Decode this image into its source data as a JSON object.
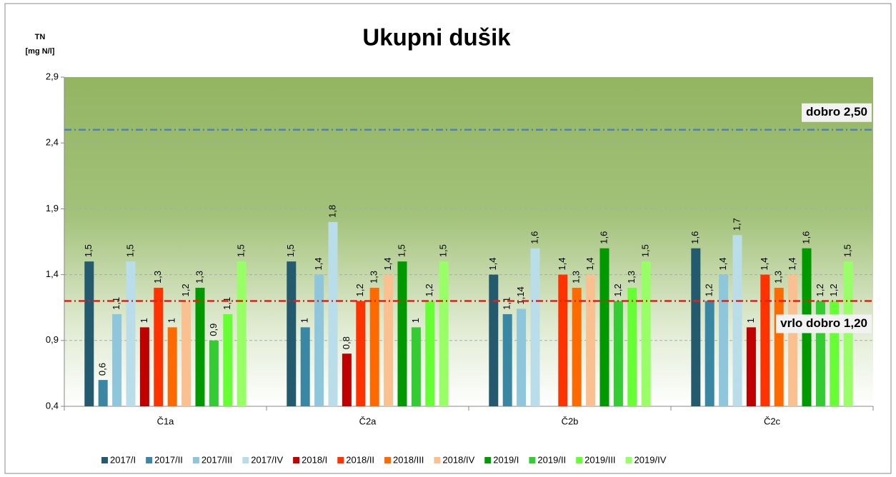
{
  "chart_data": {
    "type": "bar",
    "title": "Ukupni dušik",
    "y_label": [
      "TN",
      "[mg N/l]"
    ],
    "categories": [
      "Č1a",
      "Č2a",
      "Č2b",
      "Č2c"
    ],
    "ylim": [
      0.4,
      2.9
    ],
    "yticks": [
      {
        "value": 0.4,
        "label": "0,4"
      },
      {
        "value": 0.9,
        "label": "0,9"
      },
      {
        "value": 1.4,
        "label": "1,4"
      },
      {
        "value": 1.9,
        "label": "1,9"
      },
      {
        "value": 2.4,
        "label": "2,4"
      },
      {
        "value": 2.9,
        "label": "2,9"
      }
    ],
    "grid": true,
    "legend": "bottom",
    "reference_lines": [
      {
        "value": 2.5,
        "label": "dobro 2,50",
        "color": "#4f81bd"
      },
      {
        "value": 1.2,
        "label": "vrlo dobro 1,20",
        "color": "#e0201a"
      }
    ],
    "series": [
      {
        "name": "2017/I",
        "color": "#245a6e",
        "values": [
          1.5,
          1.5,
          1.4,
          1.6
        ],
        "value_labels": [
          "1,5",
          "1,5",
          "1,4",
          "1,6"
        ]
      },
      {
        "name": "2017/II",
        "color": "#3a87a3",
        "values": [
          0.6,
          1,
          1.1,
          1.2
        ],
        "value_labels": [
          "0,6",
          "1",
          "1,1",
          "1,2"
        ]
      },
      {
        "name": "2017/III",
        "color": "#8ec6dc",
        "values": [
          1.1,
          1.4,
          1.14,
          1.4
        ],
        "value_labels": [
          "1,1",
          "1,4",
          "1,14",
          "1,4"
        ]
      },
      {
        "name": "2017/IV",
        "color": "#b9dde9",
        "values": [
          1.5,
          1.8,
          1.6,
          1.7
        ],
        "value_labels": [
          "1,5",
          "1,8",
          "1,6",
          "1,7"
        ]
      },
      {
        "name": "2018/I",
        "color": "#c00000",
        "values": [
          1,
          0.8,
          null,
          1
        ],
        "value_labels": [
          "1",
          "0,8",
          null,
          "1"
        ]
      },
      {
        "name": "2018/II",
        "color": "#ff3300",
        "values": [
          1.3,
          1.2,
          1.4,
          1.4
        ],
        "value_labels": [
          "1,3",
          "1,2",
          "1,4",
          "1,4"
        ]
      },
      {
        "name": "2018/III",
        "color": "#ff6a00",
        "values": [
          1,
          1.3,
          1.3,
          1.3
        ],
        "value_labels": [
          "1",
          "1,3",
          "1,3",
          "1,3"
        ]
      },
      {
        "name": "2018/IV",
        "color": "#fac090",
        "values": [
          1.2,
          1.4,
          1.4,
          1.4
        ],
        "value_labels": [
          "1,2",
          "1,4",
          "1,4",
          "1,4"
        ]
      },
      {
        "name": "2019/I",
        "color": "#009900",
        "values": [
          1.3,
          1.5,
          1.6,
          1.6
        ],
        "value_labels": [
          "1,3",
          "1,5",
          "1,6",
          "1,6"
        ]
      },
      {
        "name": "2019/II",
        "color": "#33cc33",
        "values": [
          0.9,
          1,
          1.2,
          1.2
        ],
        "value_labels": [
          "0,9",
          "1",
          "1,2",
          "1,2"
        ]
      },
      {
        "name": "2019/III",
        "color": "#66ff33",
        "values": [
          1.1,
          1.2,
          1.3,
          1.2
        ],
        "value_labels": [
          "1,1",
          "1,2",
          "1,3",
          "1,2"
        ]
      },
      {
        "name": "2019/IV",
        "color": "#99ff66",
        "values": [
          1.5,
          1.5,
          1.5,
          1.5
        ],
        "value_labels": [
          "1,5",
          "1,5",
          "1,5",
          "1,5"
        ]
      }
    ]
  }
}
